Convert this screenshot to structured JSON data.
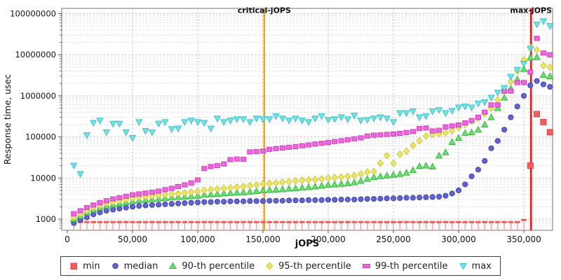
{
  "chart_data": {
    "type": "scatter",
    "title": "",
    "xlabel": "jOPS",
    "ylabel": "Response time, usec",
    "yscale": "log",
    "xlim": [
      0,
      372000
    ],
    "ylim": [
      550,
      130000000
    ],
    "grid": true,
    "legend_position": "bottom",
    "x_ticks": [
      {
        "v": 0,
        "label": "0"
      },
      {
        "v": 50000,
        "label": "50,000"
      },
      {
        "v": 100000,
        "label": "100,000"
      },
      {
        "v": 150000,
        "label": "150,000"
      },
      {
        "v": 200000,
        "label": "200,000"
      },
      {
        "v": 250000,
        "label": "250,000"
      },
      {
        "v": 300000,
        "label": "300,000"
      },
      {
        "v": 350000,
        "label": "350,000"
      }
    ],
    "y_ticks": [
      {
        "v": 1000,
        "label": "1000"
      },
      {
        "v": 10000,
        "label": "10000"
      },
      {
        "v": 100000,
        "label": "100000"
      },
      {
        "v": 1000000,
        "label": "1000000"
      },
      {
        "v": 10000000,
        "label": "10000000"
      },
      {
        "v": 100000000,
        "label": "100000000"
      }
    ],
    "annotations": [
      {
        "label": "critical-jOPS",
        "x": 151000,
        "color": "#f0a500"
      },
      {
        "label": "max-jOPS",
        "x": 355500,
        "color": "#e51717"
      }
    ],
    "x": [
      5000,
      10000,
      15000,
      20000,
      25000,
      30000,
      35000,
      40000,
      45000,
      50000,
      55000,
      60000,
      65000,
      70000,
      75000,
      80000,
      85000,
      90000,
      95000,
      100000,
      105000,
      110000,
      115000,
      120000,
      125000,
      130000,
      135000,
      140000,
      145000,
      150000,
      155000,
      160000,
      165000,
      170000,
      175000,
      180000,
      185000,
      190000,
      195000,
      200000,
      205000,
      210000,
      215000,
      220000,
      225000,
      230000,
      235000,
      240000,
      245000,
      250000,
      255000,
      260000,
      265000,
      270000,
      275000,
      280000,
      285000,
      290000,
      295000,
      300000,
      305000,
      310000,
      315000,
      320000,
      325000,
      330000,
      335000,
      340000,
      345000,
      350000,
      355000,
      360000,
      365000,
      370000
    ],
    "series": [
      {
        "name": "min",
        "marker": "min-square",
        "color": "#f0605c",
        "edge": "#d93b3b",
        "values": [
          850,
          850,
          850,
          850,
          850,
          850,
          850,
          850,
          850,
          850,
          850,
          850,
          850,
          850,
          850,
          850,
          850,
          850,
          850,
          850,
          850,
          850,
          850,
          850,
          850,
          850,
          850,
          850,
          850,
          850,
          850,
          850,
          850,
          850,
          850,
          850,
          850,
          850,
          850,
          850,
          850,
          850,
          850,
          850,
          850,
          850,
          850,
          850,
          850,
          850,
          850,
          850,
          850,
          850,
          850,
          850,
          850,
          850,
          850,
          850,
          850,
          850,
          850,
          850,
          850,
          850,
          850,
          850,
          850,
          960,
          20000,
          360000,
          230000,
          130000
        ]
      },
      {
        "name": "median",
        "marker": "circle",
        "color": "#6163cf",
        "edge": "#3a3cb0",
        "values": [
          800,
          950,
          1100,
          1300,
          1450,
          1600,
          1700,
          1800,
          1900,
          2000,
          2100,
          2150,
          2200,
          2250,
          2300,
          2350,
          2400,
          2450,
          2500,
          2550,
          2600,
          2600,
          2650,
          2650,
          2700,
          2700,
          2700,
          2750,
          2750,
          2750,
          2800,
          2800,
          2800,
          2850,
          2850,
          2850,
          2900,
          2900,
          2900,
          2950,
          2950,
          3000,
          3000,
          3000,
          3050,
          3100,
          3100,
          3150,
          3200,
          3200,
          3250,
          3300,
          3300,
          3350,
          3400,
          3450,
          3500,
          3700,
          4200,
          5000,
          7000,
          11000,
          16000,
          26000,
          53000,
          80000,
          150000,
          300000,
          550000,
          1000000,
          1800000,
          2300000,
          1900000,
          1650000
        ]
      },
      {
        "name": "90-th percentile",
        "marker": "triangle-up",
        "color": "#66e06c",
        "edge": "#34b23a",
        "values": [
          1000,
          1200,
          1450,
          1700,
          1900,
          2100,
          2250,
          2400,
          2550,
          2700,
          2850,
          2950,
          3050,
          3150,
          3250,
          3350,
          3450,
          3500,
          3600,
          3700,
          3900,
          4000,
          4100,
          4200,
          4300,
          4400,
          4500,
          4600,
          4800,
          5000,
          5100,
          5200,
          5300,
          5500,
          5600,
          5800,
          6000,
          6200,
          6500,
          6800,
          7000,
          7200,
          7400,
          7800,
          8500,
          9500,
          10500,
          11000,
          11500,
          12000,
          12500,
          13500,
          15500,
          19500,
          20000,
          19000,
          35000,
          42000,
          75000,
          95000,
          125000,
          130000,
          150000,
          200000,
          300000,
          500000,
          900000,
          1500000,
          2500000,
          4500000,
          8500000,
          8700000,
          3200000,
          3000000
        ]
      },
      {
        "name": "95-th percentile",
        "marker": "diamond",
        "color": "#ece760",
        "edge": "#c9c43a",
        "values": [
          1100,
          1350,
          1600,
          1900,
          2150,
          2400,
          2600,
          2800,
          3000,
          3200,
          3400,
          3500,
          3650,
          3800,
          3900,
          4050,
          4200,
          4350,
          4500,
          4700,
          5000,
          5200,
          5400,
          5600,
          5800,
          6000,
          6200,
          6500,
          6800,
          7200,
          7400,
          7600,
          7900,
          8200,
          8500,
          8800,
          9000,
          9200,
          9500,
          10000,
          10300,
          10600,
          11000,
          11500,
          12500,
          14000,
          14500,
          23000,
          35000,
          23000,
          38000,
          45000,
          62000,
          80000,
          105000,
          115000,
          120000,
          125000,
          140000,
          170000,
          200000,
          240000,
          280000,
          370000,
          500000,
          800000,
          1300000,
          2200000,
          4000000,
          7500000,
          15000000,
          13000000,
          5500000,
          5000000
        ]
      },
      {
        "name": "99-th percentile",
        "marker": "square-wide",
        "color": "#f264de",
        "edge": "#cf37bd",
        "values": [
          1350,
          1600,
          1900,
          2200,
          2500,
          2800,
          3100,
          3300,
          3600,
          3900,
          4100,
          4300,
          4500,
          4800,
          5200,
          5600,
          6200,
          6800,
          7600,
          9000,
          17000,
          19000,
          20000,
          22000,
          28000,
          29000,
          28500,
          43000,
          44000,
          45000,
          50000,
          52000,
          54000,
          56000,
          58000,
          61000,
          64000,
          67000,
          70000,
          73000,
          77000,
          81000,
          85000,
          90000,
          95000,
          105000,
          110000,
          112000,
          115000,
          118000,
          122000,
          128000,
          135000,
          160000,
          165000,
          140000,
          145000,
          175000,
          185000,
          195000,
          220000,
          250000,
          300000,
          400000,
          600000,
          600000,
          1300000,
          1300000,
          2100000,
          2100000,
          3800000,
          25000000,
          11000000,
          10000000
        ]
      },
      {
        "name": "max",
        "marker": "triangle-down",
        "color": "#6fe4e7",
        "edge": "#39bdc7",
        "values": [
          20000,
          12500,
          110000,
          220000,
          250000,
          130000,
          210000,
          210000,
          130000,
          95000,
          230000,
          140000,
          130000,
          210000,
          230000,
          155000,
          160000,
          230000,
          250000,
          230000,
          220000,
          160000,
          280000,
          230000,
          250000,
          270000,
          270000,
          230000,
          280000,
          270000,
          270000,
          320000,
          280000,
          250000,
          280000,
          250000,
          230000,
          280000,
          320000,
          260000,
          270000,
          300000,
          270000,
          330000,
          250000,
          260000,
          280000,
          300000,
          280000,
          230000,
          380000,
          380000,
          420000,
          300000,
          320000,
          420000,
          450000,
          380000,
          430000,
          520000,
          550000,
          520000,
          650000,
          700000,
          900000,
          1200000,
          1550000,
          2900000,
          4300000,
          6000000,
          14000000,
          55000000,
          65000000,
          50000000
        ]
      }
    ]
  },
  "legend": {
    "items": [
      "min",
      "median",
      "90-th percentile",
      "95-th percentile",
      "99-th percentile",
      "max"
    ]
  },
  "colors": {
    "grid_major": "#c3c3c3",
    "grid_minor": "#d6d6d6",
    "border": "#8c8c8c",
    "tick": "#555555",
    "text": "#111111",
    "min_stem": "#f5a2a2"
  }
}
